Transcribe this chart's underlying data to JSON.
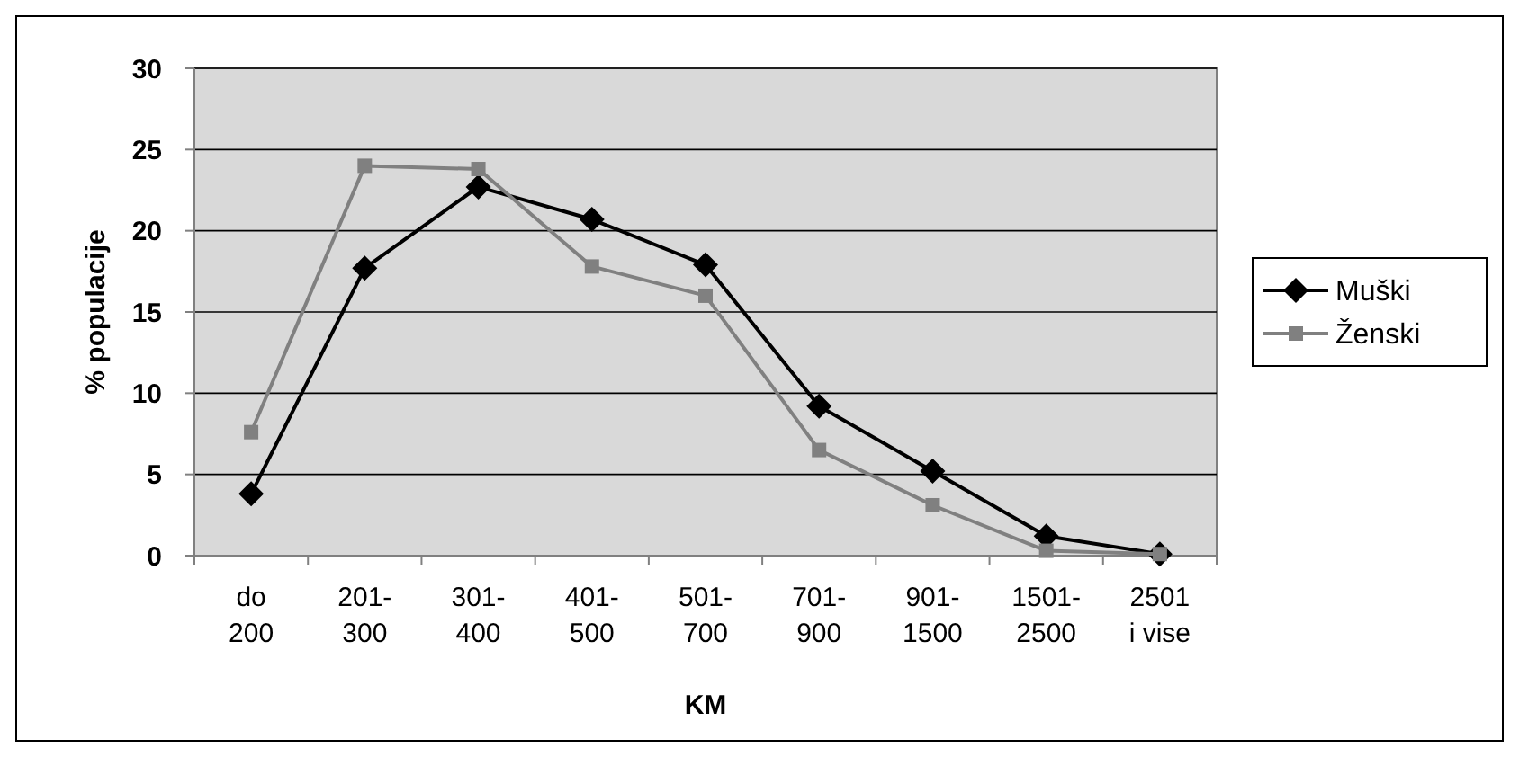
{
  "chart_data": {
    "type": "line",
    "xlabel": "KM",
    "ylabel": "% populacije",
    "categories": [
      "do 200",
      "201-300",
      "301-400",
      "401-500",
      "501-700",
      "701-900",
      "901-1500",
      "1501-2500",
      "2501 i vise"
    ],
    "series": [
      {
        "name": "Muški",
        "color": "#000000",
        "marker": "diamond",
        "values": [
          3.8,
          17.7,
          22.7,
          20.7,
          17.9,
          9.2,
          5.2,
          1.2,
          0.1
        ]
      },
      {
        "name": "Ženski",
        "color": "#808080",
        "marker": "square",
        "values": [
          7.6,
          24.0,
          23.8,
          17.8,
          16.0,
          6.5,
          3.1,
          0.3,
          0.1
        ]
      }
    ],
    "ylim": [
      0,
      30
    ],
    "yticks": [
      0,
      5,
      10,
      15,
      20,
      25,
      30
    ],
    "grid": "y",
    "legend": "right"
  }
}
